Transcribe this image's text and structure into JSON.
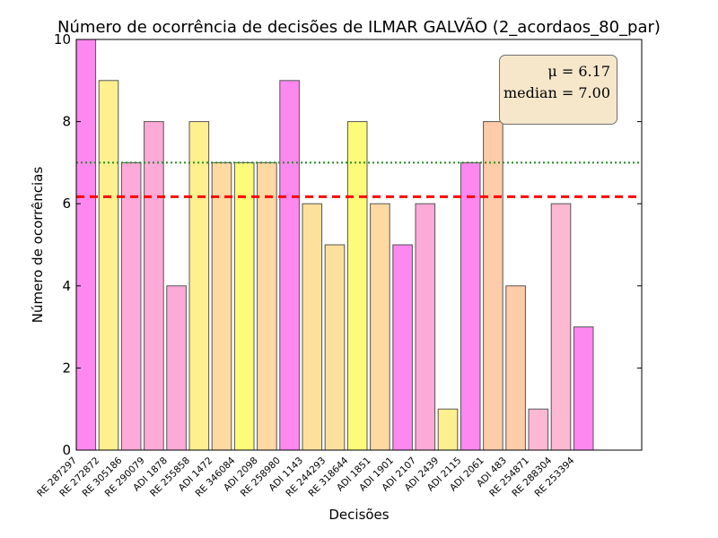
{
  "chart_data": {
    "type": "bar",
    "title": "Número de ocorrência de decisões de ILMAR GALVÃO (2_acordaos_80_par)",
    "xlabel": "Decisões",
    "ylabel": "Número de ocorrências",
    "ylim": [
      0,
      10
    ],
    "yticks": [
      "0",
      "2",
      "4",
      "6",
      "8",
      "10"
    ],
    "categories": [
      "RE 287297",
      "RE 272872",
      "RE 305186",
      "RE 290079",
      "ADI 1878",
      "RE 255858",
      "ADI 1472",
      "RE 346084",
      "ADI 2098",
      "RE 258980",
      "ADI 1143",
      "RE 244293",
      "RE 318644",
      "ADI 1851",
      "ADI 1901",
      "ADI 2107",
      "ADI 2439",
      "ADI 2115",
      "ADI 2061",
      "ADI 483",
      "RE 254871",
      "RE 288304",
      "RE 253394"
    ],
    "values": [
      10,
      9,
      7,
      8,
      4,
      8,
      7,
      7,
      7,
      9,
      6,
      5,
      8,
      6,
      5,
      6,
      1,
      7,
      8,
      4,
      1,
      6,
      3
    ],
    "bar_colors": [
      "#fc88f0",
      "#fef08e",
      "#fcaad8",
      "#fcaad8",
      "#fcaad8",
      "#fef08e",
      "#fed9a2",
      "#fdfb7a",
      "#fed9a2",
      "#fc88f0",
      "#fee09d",
      "#fee09d",
      "#fdfb7a",
      "#fed9a2",
      "#fc88f0",
      "#fcaad8",
      "#fef08e",
      "#fc88f0",
      "#fecca8",
      "#fecca8",
      "#feb8d2",
      "#feb8d2",
      "#fc88f0"
    ],
    "mean": 6.17,
    "median": 7.0,
    "mean_line_color": "#ff0000",
    "median_line_color": "#228b22",
    "mean_label": "μ = 6.17",
    "median_label": "median = 7.00",
    "legend_position": "top-right",
    "grid": false
  }
}
